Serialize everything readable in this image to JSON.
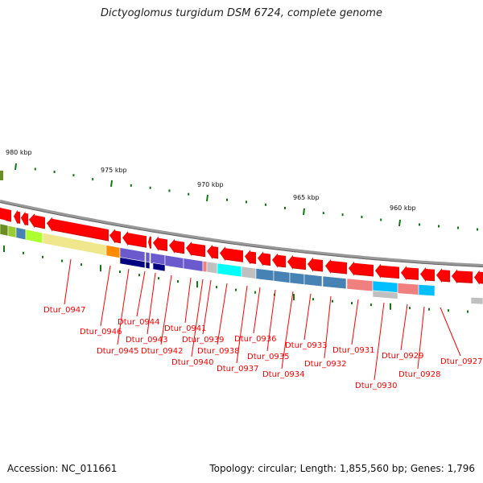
{
  "title": "Dictyoglomus turgidum DSM 6724, complete genome",
  "footer": {
    "accession": "Accession: NC_011661",
    "summary": "Topology: circular; Length: 1,855,560 bp; Genes: 1,796"
  },
  "scale_labels": [
    "980 kbp",
    "975 kbp",
    "970 kbp",
    "965 kbp",
    "960 kbp"
  ],
  "gene_labels": [
    "Dtur_0947",
    "Dtur_0946",
    "Dtur_0945",
    "Dtur_0944",
    "Dtur_0943",
    "Dtur_0942",
    "Dtur_0941",
    "Dtur_0940",
    "Dtur_0939",
    "Dtur_0938",
    "Dtur_0937",
    "Dtur_0936",
    "Dtur_0935",
    "Dtur_0934",
    "Dtur_0933",
    "Dtur_0932",
    "Dtur_0931",
    "Dtur_0930",
    "Dtur_0929",
    "Dtur_0928",
    "Dtur_0927"
  ],
  "colors": {
    "gene": "#ff0000",
    "backbone": "#888888",
    "tick": "#117711",
    "label": "#ff0000"
  }
}
